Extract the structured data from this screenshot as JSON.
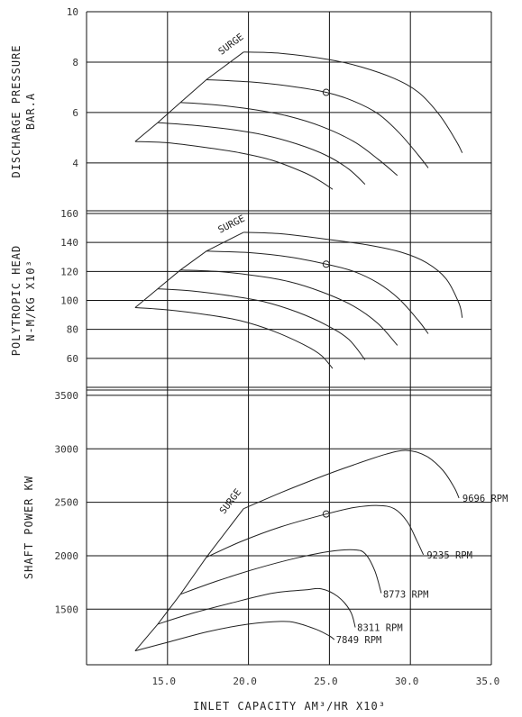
{
  "chart_data": {
    "type": "line",
    "x_label": "INLET CAPACITY AM³/HR X10³",
    "x_range": [
      10.0,
      35.0
    ],
    "x_ticks": [
      "15.0",
      "20.0",
      "25.0",
      "30.0",
      "35.0"
    ],
    "panels": [
      {
        "id": "pressure",
        "ylabel": [
          "DISCHARGE PRESSURE",
          "BAR.A"
        ],
        "ylim": [
          2.1,
          10
        ],
        "y_ticks": [
          "10",
          "8",
          "6",
          "4"
        ],
        "y_tick_values": [
          10,
          8,
          6,
          4
        ],
        "surge_label": "SURGE",
        "operating_point": [
          24.8,
          6.8
        ],
        "series": [
          {
            "name": "9696 RPM",
            "points": [
              [
                19.7,
                8.4
              ],
              [
                22,
                8.35
              ],
              [
                25,
                8.1
              ],
              [
                27,
                7.8
              ],
              [
                29,
                7.35
              ],
              [
                30.5,
                6.8
              ],
              [
                31.8,
                5.9
              ],
              [
                32.8,
                4.9
              ],
              [
                33.2,
                4.4
              ]
            ]
          },
          {
            "name": "9235 RPM",
            "points": [
              [
                17.4,
                7.3
              ],
              [
                20,
                7.22
              ],
              [
                22.5,
                7.05
              ],
              [
                24.8,
                6.8
              ],
              [
                26.5,
                6.45
              ],
              [
                28,
                5.95
              ],
              [
                29.3,
                5.2
              ],
              [
                30.5,
                4.3
              ],
              [
                31.1,
                3.8
              ]
            ]
          },
          {
            "name": "8773 RPM",
            "points": [
              [
                15.8,
                6.4
              ],
              [
                18,
                6.3
              ],
              [
                20.5,
                6.1
              ],
              [
                22.5,
                5.85
              ],
              [
                24.5,
                5.45
              ],
              [
                26.5,
                4.85
              ],
              [
                28,
                4.15
              ],
              [
                29.2,
                3.5
              ]
            ]
          },
          {
            "name": "8311 RPM",
            "points": [
              [
                14.4,
                5.6
              ],
              [
                16.5,
                5.5
              ],
              [
                19,
                5.32
              ],
              [
                21,
                5.1
              ],
              [
                23,
                4.75
              ],
              [
                24.8,
                4.3
              ],
              [
                26.2,
                3.75
              ],
              [
                27.2,
                3.15
              ]
            ]
          },
          {
            "name": "7849 RPM",
            "points": [
              [
                13.0,
                4.85
              ],
              [
                15,
                4.8
              ],
              [
                17.5,
                4.6
              ],
              [
                19.5,
                4.4
              ],
              [
                21.5,
                4.1
              ],
              [
                23.5,
                3.6
              ],
              [
                24.5,
                3.25
              ],
              [
                25.2,
                2.95
              ]
            ]
          }
        ],
        "surge_line": [
          [
            13.0,
            4.85
          ],
          [
            14.4,
            5.6
          ],
          [
            15.8,
            6.4
          ],
          [
            17.4,
            7.3
          ],
          [
            19.7,
            8.4
          ]
        ]
      },
      {
        "id": "head",
        "ylabel": [
          "POLYTROPIC HEAD",
          "N-M/KG X10³"
        ],
        "ylim": [
          40,
          160
        ],
        "y_ticks": [
          "160",
          "140",
          "120",
          "100",
          "80",
          "60"
        ],
        "y_tick_values": [
          160,
          140,
          120,
          100,
          80,
          60
        ],
        "surge_label": "SURGE",
        "operating_point": [
          24.8,
          125
        ],
        "series": [
          {
            "name": "9696 RPM",
            "points": [
              [
                19.7,
                147
              ],
              [
                22,
                146
              ],
              [
                25,
                142
              ],
              [
                27.5,
                138
              ],
              [
                29.5,
                133
              ],
              [
                31,
                126
              ],
              [
                32.2,
                115
              ],
              [
                33.0,
                98
              ],
              [
                33.2,
                88
              ]
            ]
          },
          {
            "name": "9235 RPM",
            "points": [
              [
                17.4,
                134
              ],
              [
                20,
                133
              ],
              [
                22.5,
                130
              ],
              [
                24.8,
                125
              ],
              [
                26.5,
                120
              ],
              [
                28,
                112
              ],
              [
                29.3,
                101
              ],
              [
                30.5,
                86
              ],
              [
                31.1,
                77
              ]
            ]
          },
          {
            "name": "8773 RPM",
            "points": [
              [
                15.8,
                121
              ],
              [
                18,
                120
              ],
              [
                20.5,
                117
              ],
              [
                22.5,
                113
              ],
              [
                24.5,
                106
              ],
              [
                26.5,
                96
              ],
              [
                28,
                84
              ],
              [
                29.2,
                69
              ]
            ]
          },
          {
            "name": "8311 RPM",
            "points": [
              [
                14.4,
                108
              ],
              [
                16.5,
                106.5
              ],
              [
                19,
                103
              ],
              [
                21,
                99
              ],
              [
                23,
                92
              ],
              [
                24.8,
                83
              ],
              [
                26.2,
                73
              ],
              [
                27.2,
                59
              ]
            ]
          },
          {
            "name": "7849 RPM",
            "points": [
              [
                13.0,
                95
              ],
              [
                15,
                93.5
              ],
              [
                17.5,
                90
              ],
              [
                19.5,
                86
              ],
              [
                21.5,
                79
              ],
              [
                23.5,
                69
              ],
              [
                24.5,
                62
              ],
              [
                25.2,
                53
              ]
            ]
          }
        ],
        "surge_line": [
          [
            13.0,
            95
          ],
          [
            14.4,
            108
          ],
          [
            15.8,
            121
          ],
          [
            17.4,
            134
          ],
          [
            19.7,
            147
          ]
        ]
      },
      {
        "id": "power",
        "ylabel": [
          "SHAFT POWER  KW"
        ],
        "ylim": [
          980,
          3550
        ],
        "y_ticks": [
          "3500",
          "3000",
          "2500",
          "2000",
          "1500"
        ],
        "y_tick_values": [
          3500,
          3000,
          2500,
          2000,
          1500
        ],
        "surge_label": "SURGE",
        "operating_point": [
          24.8,
          2390
        ],
        "series": [
          {
            "name": "9696 RPM",
            "label": "9696 RPM",
            "label_at": [
              33.1,
              2540
            ],
            "points": [
              [
                19.7,
                2440
              ],
              [
                22,
                2590
              ],
              [
                24.5,
                2740
              ],
              [
                26.5,
                2850
              ],
              [
                28.5,
                2950
              ],
              [
                29.8,
                2985
              ],
              [
                31,
                2930
              ],
              [
                32,
                2800
              ],
              [
                32.7,
                2640
              ],
              [
                33.0,
                2540
              ]
            ]
          },
          {
            "name": "9235 RPM",
            "label": "9235 RPM",
            "label_at": [
              30.9,
              2010
            ],
            "points": [
              [
                17.4,
                1985
              ],
              [
                19.5,
                2130
              ],
              [
                22,
                2270
              ],
              [
                24.8,
                2390
              ],
              [
                26.5,
                2450
              ],
              [
                28,
                2470
              ],
              [
                29,
                2440
              ],
              [
                29.8,
                2320
              ],
              [
                30.4,
                2140
              ],
              [
                30.8,
                2010
              ]
            ]
          },
          {
            "name": "8773 RPM",
            "label": "8773 RPM",
            "label_at": [
              28.2,
              1640
            ],
            "points": [
              [
                15.8,
                1640
              ],
              [
                18,
                1760
              ],
              [
                20.5,
                1880
              ],
              [
                23,
                1980
              ],
              [
                25,
                2040
              ],
              [
                26.5,
                2055
              ],
              [
                27.2,
                2020
              ],
              [
                27.8,
                1860
              ],
              [
                28.2,
                1650
              ]
            ]
          },
          {
            "name": "8311 RPM",
            "label": "8311 RPM",
            "label_at": [
              26.6,
              1330
            ],
            "points": [
              [
                14.4,
                1360
              ],
              [
                16.5,
                1460
              ],
              [
                19,
                1560
              ],
              [
                21.5,
                1650
              ],
              [
                23.5,
                1680
              ],
              [
                24.5,
                1690
              ],
              [
                25.5,
                1620
              ],
              [
                26.3,
                1480
              ],
              [
                26.6,
                1330
              ]
            ]
          },
          {
            "name": "7849 RPM",
            "label": "7849 RPM",
            "label_at": [
              25.3,
              1215
            ],
            "points": [
              [
                13.0,
                1110
              ],
              [
                15,
                1190
              ],
              [
                17.5,
                1290
              ],
              [
                20,
                1360
              ],
              [
                22,
                1385
              ],
              [
                23,
                1370
              ],
              [
                24.2,
                1310
              ],
              [
                25.0,
                1250
              ],
              [
                25.3,
                1215
              ]
            ]
          }
        ],
        "surge_line": [
          [
            13.0,
            1110
          ],
          [
            14.4,
            1360
          ],
          [
            15.8,
            1640
          ],
          [
            17.4,
            1985
          ],
          [
            19.7,
            2440
          ]
        ]
      }
    ]
  }
}
